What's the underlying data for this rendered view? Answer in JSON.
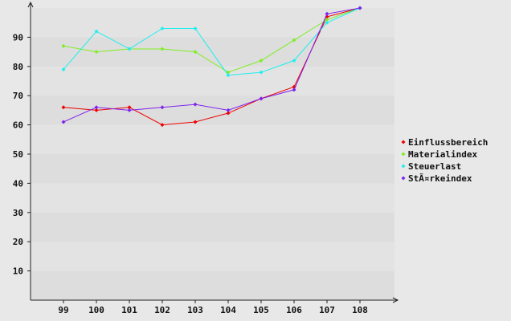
{
  "chart_data": {
    "type": "line",
    "title": "",
    "xlabel": "",
    "ylabel": "",
    "categories": [
      "99",
      "100",
      "101",
      "102",
      "103",
      "104",
      "105",
      "106",
      "107",
      "108"
    ],
    "yticks": [
      10,
      20,
      30,
      40,
      50,
      60,
      70,
      80,
      90
    ],
    "ylim": [
      0,
      100
    ],
    "grid": "alternating horizontal bands",
    "legend_position": "right",
    "series": [
      {
        "name": "Einflussbereich",
        "color": "#ee0000",
        "values": [
          66,
          65,
          66,
          60,
          61,
          64,
          69,
          73,
          97,
          100
        ]
      },
      {
        "name": "Materialindex",
        "color": "#7fee22",
        "values": [
          87,
          85,
          86,
          86,
          85,
          78,
          82,
          89,
          96,
          100
        ]
      },
      {
        "name": "Steuerlast",
        "color": "#22eeee",
        "values": [
          79,
          92,
          86,
          93,
          93,
          77,
          78,
          82,
          95,
          100
        ]
      },
      {
        "name": "StÃ¤rkeindex",
        "color": "#7f22ee",
        "values": [
          61,
          66,
          65,
          66,
          67,
          65,
          69,
          72,
          98,
          100
        ]
      }
    ]
  }
}
